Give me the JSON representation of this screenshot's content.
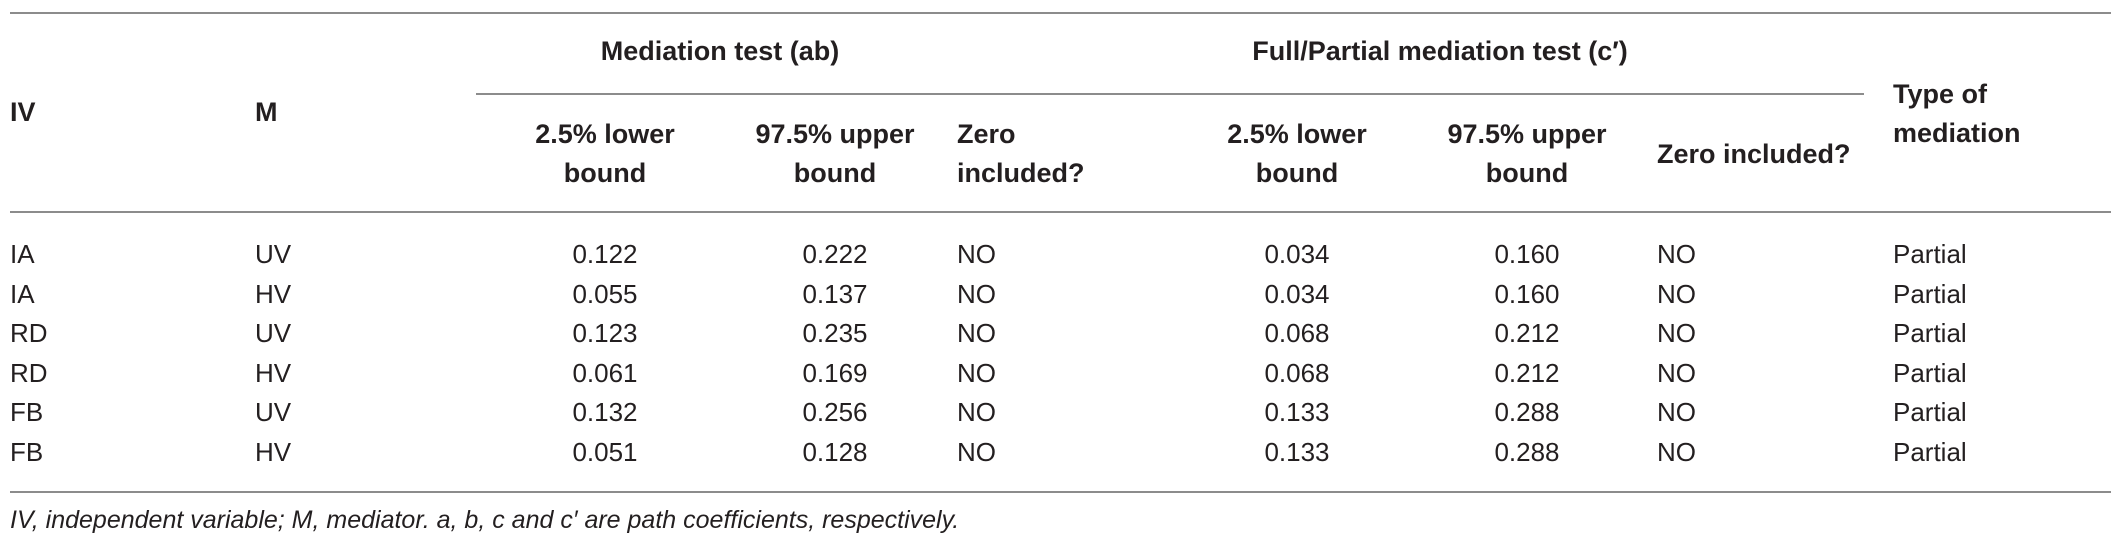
{
  "table": {
    "headers": {
      "iv": "IV",
      "m": "M",
      "group_mediation": "Mediation test (ab)",
      "group_full_partial": "Full/Partial mediation test (c′)",
      "type": "Type of mediation",
      "lower_line1": "2.5% lower",
      "lower_line2": "bound",
      "upper_line1": "97.5% upper",
      "upper_line2": "bound",
      "zero_line1": "Zero",
      "zero_line2": "included?",
      "zero_full": "Zero included?"
    },
    "rows": [
      [
        "IA",
        "UV",
        "0.122",
        "0.222",
        "NO",
        "0.034",
        "0.160",
        "NO",
        "Partial"
      ],
      [
        "IA",
        "HV",
        "0.055",
        "0.137",
        "NO",
        "0.034",
        "0.160",
        "NO",
        "Partial"
      ],
      [
        "RD",
        "UV",
        "0.123",
        "0.235",
        "NO",
        "0.068",
        "0.212",
        "NO",
        "Partial"
      ],
      [
        "RD",
        "HV",
        "0.061",
        "0.169",
        "NO",
        "0.068",
        "0.212",
        "NO",
        "Partial"
      ],
      [
        "FB",
        "UV",
        "0.132",
        "0.256",
        "NO",
        "0.133",
        "0.288",
        "NO",
        "Partial"
      ],
      [
        "FB",
        "HV",
        "0.051",
        "0.128",
        "NO",
        "0.133",
        "0.288",
        "NO",
        "Partial"
      ]
    ],
    "footnote": "IV, independent variable; M, mediator. a, b, c and c′ are path coefficients, respectively."
  }
}
